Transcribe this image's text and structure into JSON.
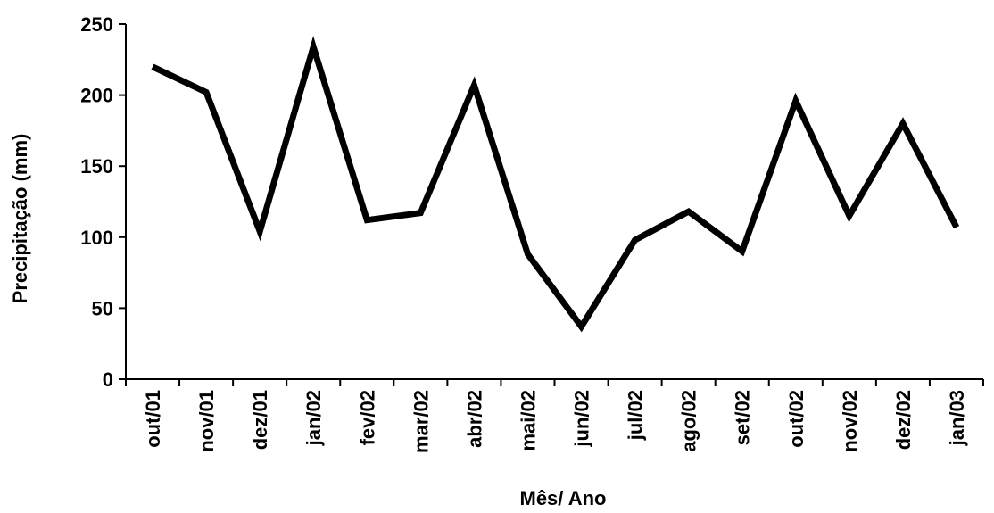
{
  "chart_data": {
    "type": "line",
    "title": "",
    "xlabel": "Mês/ Ano",
    "ylabel": "Precipitação (mm)",
    "ylim": [
      0,
      250
    ],
    "yticks": [
      "0",
      "50",
      "100",
      "150",
      "200",
      "250"
    ],
    "grid": false,
    "categories": [
      "out/01",
      "nov/01",
      "dez/01",
      "jan/02",
      "fev/02",
      "mar/02",
      "abr/02",
      "mai/02",
      "jun/02",
      "jul/02",
      "ago/02",
      "set/02",
      "out/02",
      "nov/02",
      "dez/02",
      "jan/03"
    ],
    "series": [
      {
        "values": [
          220,
          202,
          104,
          234,
          112,
          117,
          207,
          88,
          37,
          98,
          118,
          90,
          196,
          115,
          180,
          107
        ],
        "color": "#000000"
      }
    ]
  }
}
